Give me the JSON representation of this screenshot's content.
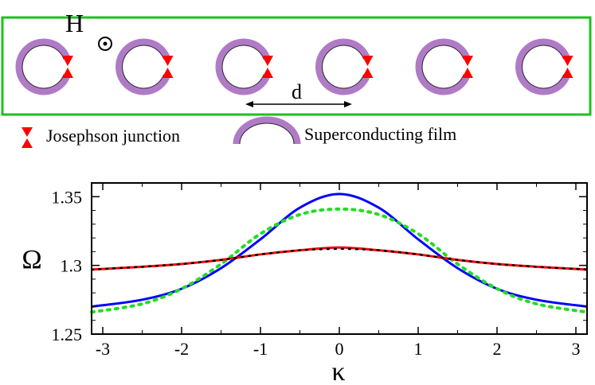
{
  "diagram": {
    "field_label": "H",
    "distance_label": "d",
    "ring_count": 6,
    "legend": {
      "junction_label": "Josephson junction",
      "film_label": "Superconducting film"
    },
    "colors": {
      "frame": "#1fbf1f",
      "ring": "#b07bc6",
      "junction": "#ff0000"
    }
  },
  "chart_data": {
    "type": "line",
    "title": "",
    "xlabel": "κ",
    "ylabel": "Ω",
    "xlim": [
      -3.14159,
      3.14159
    ],
    "ylim": [
      1.25,
      1.36
    ],
    "xticks": [
      -3,
      -2,
      -1,
      0,
      1,
      2,
      3
    ],
    "xtick_labels": [
      "-3",
      "-2",
      "-1",
      "0",
      "1",
      "2",
      "3"
    ],
    "yticks": [
      1.25,
      1.3,
      1.35
    ],
    "ytick_labels": [
      "1.25",
      "1.3",
      "1.35"
    ],
    "series": [
      {
        "name": "blue",
        "style": "solid",
        "color": "#0000ff",
        "x": [
          -3.14,
          -2.5,
          -2.0,
          -1.5,
          -1.0,
          -0.5,
          0.0,
          0.5,
          1.0,
          1.5,
          2.0,
          2.5,
          3.14
        ],
        "y": [
          1.27,
          1.275,
          1.283,
          1.298,
          1.319,
          1.342,
          1.352,
          1.342,
          1.319,
          1.298,
          1.283,
          1.275,
          1.27
        ]
      },
      {
        "name": "green",
        "style": "dotted",
        "color": "#22dd22",
        "x": [
          -3.14,
          -2.5,
          -2.0,
          -1.5,
          -1.0,
          -0.5,
          0.0,
          0.5,
          1.0,
          1.5,
          2.0,
          2.5,
          3.14
        ],
        "y": [
          1.266,
          1.272,
          1.283,
          1.301,
          1.323,
          1.337,
          1.341,
          1.337,
          1.323,
          1.301,
          1.283,
          1.272,
          1.266
        ]
      },
      {
        "name": "red",
        "style": "solid",
        "color": "#ff0000",
        "x": [
          -3.14,
          -2.5,
          -2.0,
          -1.5,
          -1.0,
          -0.5,
          0.0,
          0.5,
          1.0,
          1.5,
          2.0,
          2.5,
          3.14
        ],
        "y": [
          1.297,
          1.299,
          1.301,
          1.304,
          1.308,
          1.311,
          1.313,
          1.311,
          1.308,
          1.304,
          1.301,
          1.299,
          1.297
        ]
      },
      {
        "name": "black",
        "style": "dotted",
        "color": "#000000",
        "x": [
          -3.14,
          -2.5,
          -2.0,
          -1.5,
          -1.0,
          -0.5,
          0.0,
          0.5,
          1.0,
          1.5,
          2.0,
          2.5,
          3.14
        ],
        "y": [
          1.297,
          1.299,
          1.301,
          1.304,
          1.308,
          1.311,
          1.312,
          1.311,
          1.308,
          1.304,
          1.301,
          1.299,
          1.297
        ]
      }
    ]
  }
}
